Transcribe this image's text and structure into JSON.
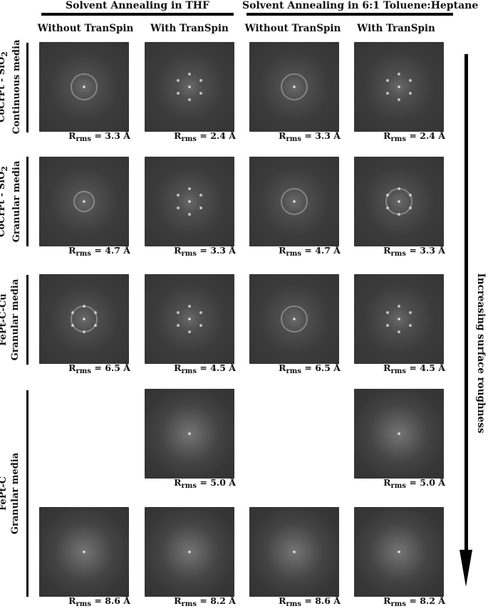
{
  "groups": [
    {
      "title": "Solvent Annealing in THF"
    },
    {
      "title": "Solvent Annealing in 6:1 Toluene:Heptane"
    }
  ],
  "columns": [
    "Without TranSpin",
    "With TranSpin",
    "Without TranSpin",
    "With TranSpin"
  ],
  "rows": [
    {
      "line1": "CoCrPt - SiO",
      "sub": "2",
      "line2": "Continuous media"
    },
    {
      "line1": "CoCrPt - SiO",
      "sub": "2",
      "line2": "Granular media"
    },
    {
      "line1": "FePt-C-Cu",
      "sub": "",
      "line2": "Granular media"
    },
    {
      "line1": "FePt-C",
      "sub": "",
      "line2": "Granular media"
    }
  ],
  "roughness_prefix": "R",
  "roughness_sub": "rms",
  "roughness": [
    [
      "= 3.3 Å",
      "= 2.4 Å",
      "= 3.3 Å",
      "= 2.4 Å"
    ],
    [
      "= 4.7 Å",
      "= 3.3 Å",
      "= 4.7 Å",
      "= 3.3 Å"
    ],
    [
      "= 6.5 Å",
      "= 4.5 Å",
      "= 6.5 Å",
      "= 4.5 Å"
    ],
    [
      "",
      "= 5.0 Å",
      "",
      "= 5.0 Å"
    ],
    [
      "= 8.6 Å",
      "= 8.2 Å",
      "= 8.6 Å",
      "= 8.2 Å"
    ]
  ],
  "arrow_label": "Increasing surface roughness"
}
